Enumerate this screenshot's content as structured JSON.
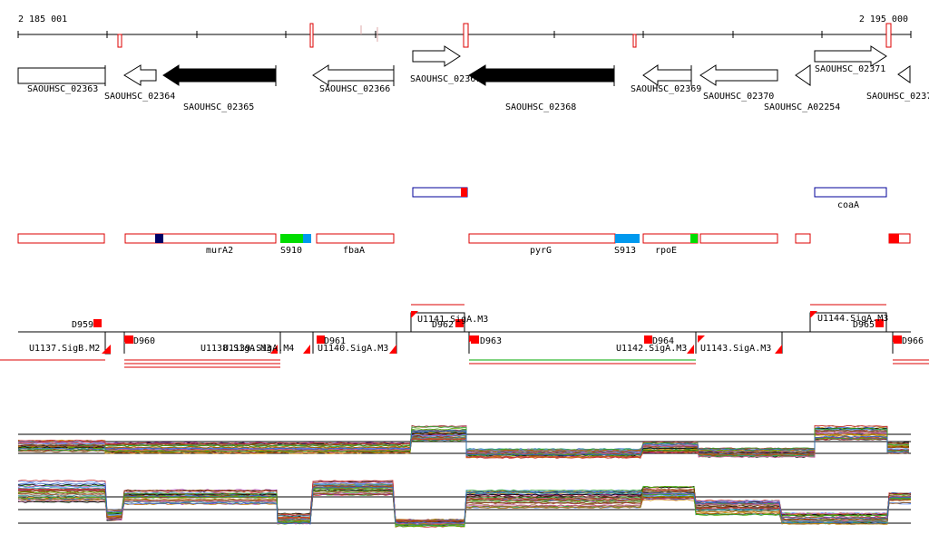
{
  "ruler": {
    "start_label": "2 185 001",
    "end_label": "2 195 000"
  },
  "genes": [
    {
      "id": "SAOUHSC_02363",
      "strand": "+",
      "filled": false
    },
    {
      "id": "SAOUHSC_02364",
      "strand": "-",
      "filled": false
    },
    {
      "id": "SAOUHSC_02365",
      "strand": "-",
      "filled": true
    },
    {
      "id": "SAOUHSC_02366",
      "strand": "-",
      "filled": false
    },
    {
      "id": "SAOUHSC_02367",
      "strand": "+",
      "filled": false
    },
    {
      "id": "SAOUHSC_02368",
      "strand": "-",
      "filled": true
    },
    {
      "id": "SAOUHSC_02369",
      "strand": "-",
      "filled": false
    },
    {
      "id": "SAOUHSC_02370",
      "strand": "-",
      "filled": false
    },
    {
      "id": "SAOUHSC_A02254",
      "strand": "-",
      "filled": false
    },
    {
      "id": "SAOUHSC_02371",
      "strand": "+",
      "filled": false
    },
    {
      "id": "SAOUHSC_0237",
      "strand": "-",
      "filled": false
    }
  ],
  "upper_features": [
    {
      "label": "coaA"
    }
  ],
  "lower_features": [
    {
      "label": "murA2"
    },
    {
      "label": "S910",
      "color": "#00dd00"
    },
    {
      "label": "fbaA"
    },
    {
      "label": "pyrG"
    },
    {
      "label": "S913",
      "color": "#0099ee"
    },
    {
      "label": "rpoE"
    }
  ],
  "transcription_units": [
    {
      "label": "U1137.SigB.M2"
    },
    {
      "label": "U1138.SigA.M3"
    },
    {
      "label": "U1139.SigA.M4"
    },
    {
      "label": "U1140.SigA.M3"
    },
    {
      "label": "U1141.SigA.M3"
    },
    {
      "label": "U1142.SigA.M3"
    },
    {
      "label": "U1143.SigA.M3"
    },
    {
      "label": "U1144.SigA.M3"
    }
  ],
  "breakpoints": [
    {
      "label": "D959"
    },
    {
      "label": "D960"
    },
    {
      "label": "D961"
    },
    {
      "label": "D962"
    },
    {
      "label": "D963"
    },
    {
      "label": "D964"
    },
    {
      "label": "D965"
    },
    {
      "label": "D966"
    }
  ],
  "colors": {
    "gene_fill": "#000000",
    "feature_outline": "#dd0000",
    "upper_feature_outline": "#000099",
    "marker_red": "#ff0000",
    "marker_navy": "#000066",
    "green_line": "#00aa00"
  }
}
